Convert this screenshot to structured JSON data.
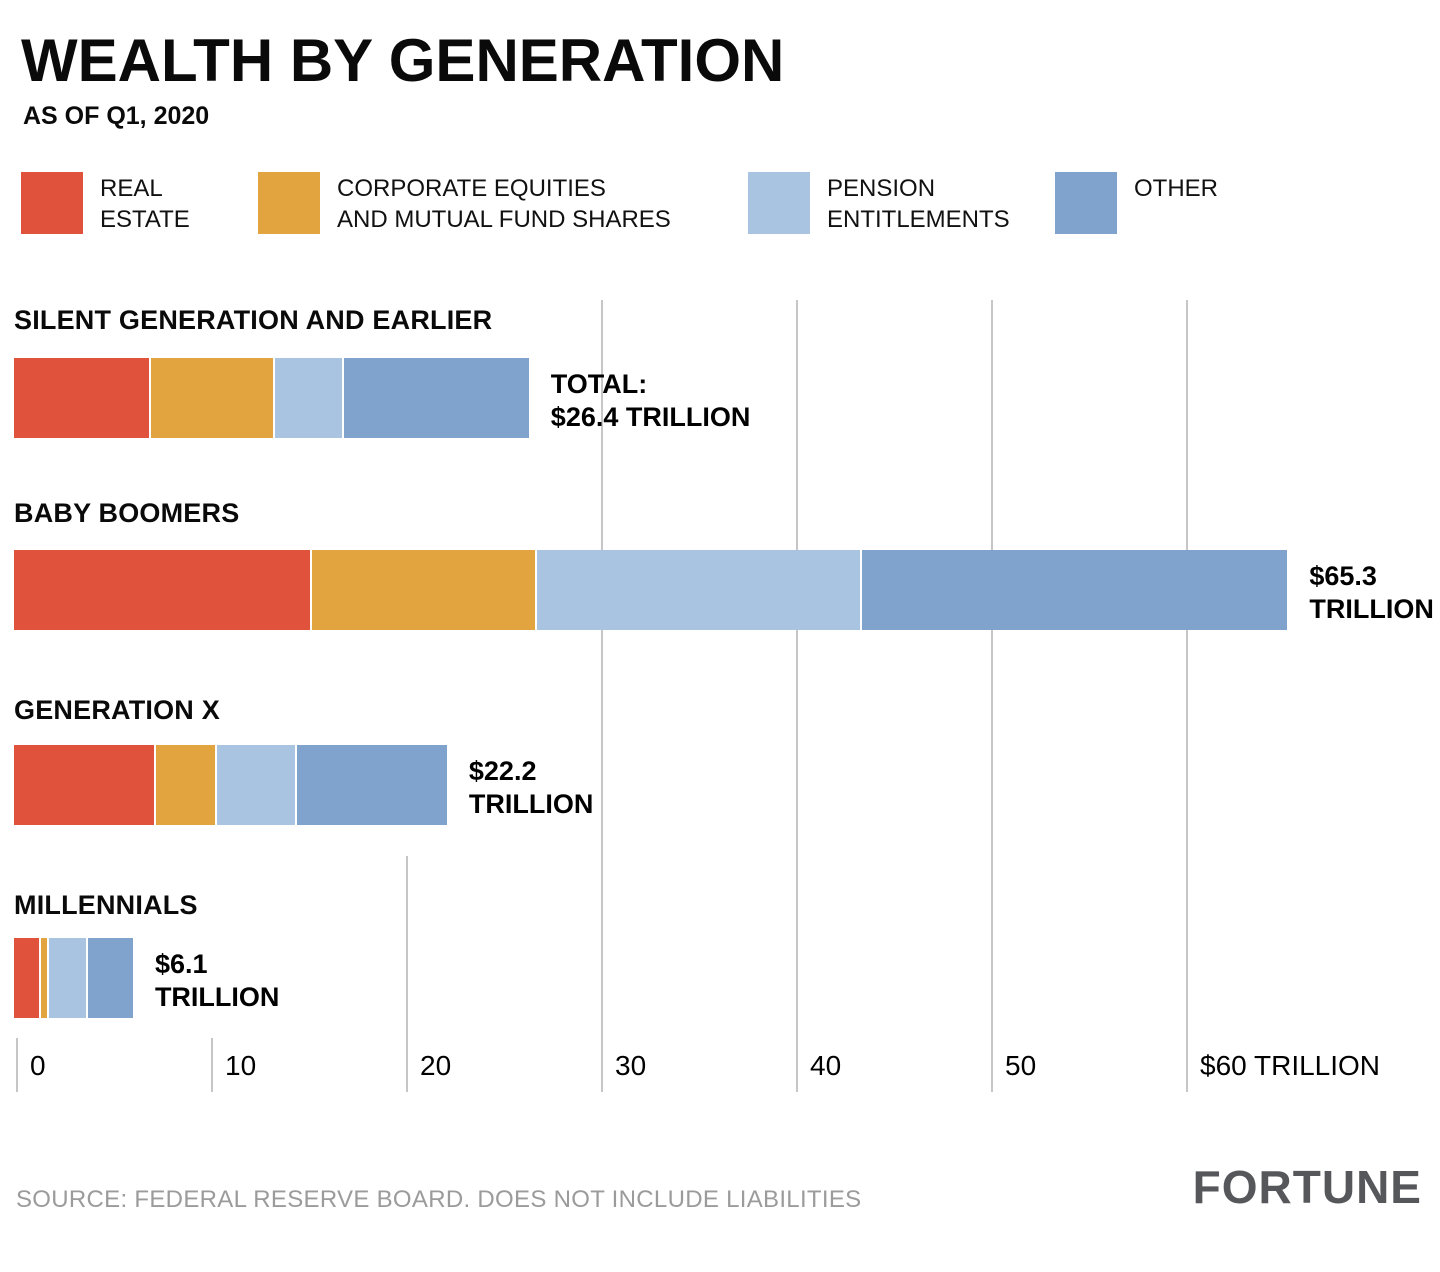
{
  "chart_data": {
    "type": "bar",
    "stacked": true,
    "orientation": "horizontal",
    "title": "WEALTH BY GENERATION",
    "subtitle": "AS OF Q1, 2020",
    "unit": "trillions of USD",
    "series": [
      {
        "id": "real-estate",
        "name": "Real estate",
        "color": "#E0523C"
      },
      {
        "id": "equities",
        "name": "Corporate equities and mutual fund shares",
        "color": "#E2A43E"
      },
      {
        "id": "pension",
        "name": "Pension entitlements",
        "color": "#A9C4E1"
      },
      {
        "id": "other",
        "name": "Other",
        "color": "#80A3CD"
      }
    ],
    "rows": [
      {
        "label": "SILENT GENERATION AND EARLIER",
        "values": [
          6.9,
          6.4,
          3.5,
          9.6
        ],
        "total": 26.4,
        "total_label": "TOTAL:\n$26.4 TRILLION"
      },
      {
        "label": "BABY BOOMERS",
        "values": [
          15.2,
          11.5,
          16.7,
          21.9
        ],
        "total": 65.3,
        "total_label": "$65.3\nTRILLION"
      },
      {
        "label": "GENERATION X",
        "values": [
          7.2,
          3.1,
          4.1,
          7.8
        ],
        "total": 22.2,
        "total_label": "$22.2\nTRILLION"
      },
      {
        "label": "MILLENNIALS",
        "values": [
          1.3,
          0.4,
          2.0,
          2.4
        ],
        "total": 6.1,
        "total_label": "$6.1\nTRILLION"
      }
    ],
    "axis": {
      "min": 0,
      "max": 60,
      "grid": true,
      "ticks": [
        {
          "value": 0,
          "label": "0",
          "extent": "short"
        },
        {
          "value": 10,
          "label": "10",
          "extent": "short"
        },
        {
          "value": 20,
          "label": "20",
          "extent": "partial"
        },
        {
          "value": 30,
          "label": "30",
          "extent": "full"
        },
        {
          "value": 40,
          "label": "40",
          "extent": "full"
        },
        {
          "value": 50,
          "label": "50",
          "extent": "full"
        },
        {
          "value": 60,
          "label": "$60 TRILLION",
          "extent": "full"
        }
      ]
    }
  },
  "legend": {
    "items": [
      {
        "label": "REAL\nESTATE"
      },
      {
        "label": "CORPORATE EQUITIES\nAND MUTUAL FUND SHARES"
      },
      {
        "label": "PENSION\nENTITLEMENTS"
      },
      {
        "label": "OTHER"
      }
    ]
  },
  "footer": {
    "source": "SOURCE: FEDERAL RESERVE BOARD. DOES NOT INCLUDE LIABILITIES",
    "brand": "FORTUNE"
  }
}
